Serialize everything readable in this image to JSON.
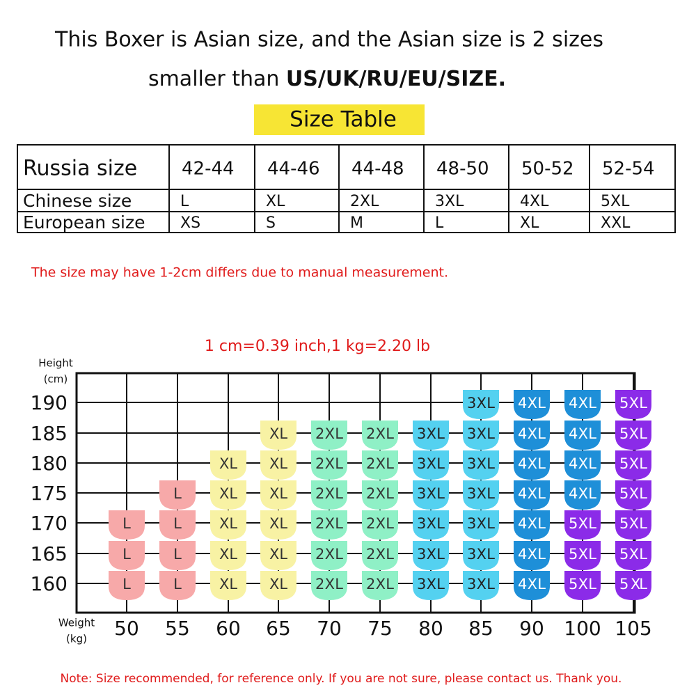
{
  "header": {
    "line1": "This Boxer is Asian size, and the Asian size is 2 sizes",
    "line2_start": "smaller than ",
    "line2_bold": "US/UK/RU/EU/SIZE."
  },
  "table": {
    "title": "Size Table",
    "rows": [
      [
        "Russia size",
        "42-44",
        "44-46",
        "44-48",
        "48-50",
        "50-52",
        "52-54"
      ],
      [
        "Chinese size",
        "L",
        "XL",
        "2XL",
        "3XL",
        "4XL",
        "5XL"
      ],
      [
        "European size",
        "XS",
        "S",
        "M",
        "L",
        "XL",
        "XXL"
      ]
    ]
  },
  "measurement_note": "The size may have 1-2cm differs due to manual measurement.",
  "conversion": "1 cm=0.39 inch,1 kg=2.20 lb",
  "grid": {
    "y_label": [
      "Height",
      "(cm)"
    ],
    "x_label": [
      "Weight",
      "(kg)"
    ],
    "weights": [
      "50",
      "55",
      "60",
      "65",
      "70",
      "75",
      "80",
      "85",
      "90",
      "100",
      "105"
    ],
    "size_colors": {
      "L": [
        "#f7a9a9",
        "#333333"
      ],
      "XL": [
        "#f8f2a4",
        "#333333"
      ],
      "2XL": [
        "#8ff0c6",
        "#333333"
      ],
      "3XL": [
        "#54d1f0",
        "#222222"
      ],
      "4XL": [
        "#1e8fd8",
        "#ffffff"
      ],
      "5XL": [
        "#8b2be8",
        "#ffffff"
      ],
      "5 XL": [
        "#8b2be8",
        "#ffffff"
      ]
    },
    "rows": [
      {
        "height": "190",
        "cells": [
          null,
          null,
          null,
          null,
          null,
          null,
          null,
          "3XL",
          "4XL",
          "4XL",
          "5XL"
        ]
      },
      {
        "height": "185",
        "cells": [
          null,
          null,
          null,
          "XL",
          "2XL",
          "2XL",
          "3XL",
          "3XL",
          "4XL",
          "4XL",
          "5XL"
        ]
      },
      {
        "height": "180",
        "cells": [
          null,
          null,
          "XL",
          "XL",
          "2XL",
          "2XL",
          "3XL",
          "3XL",
          "4XL",
          "4XL",
          "5XL"
        ]
      },
      {
        "height": "175",
        "cells": [
          null,
          "L",
          "XL",
          "XL",
          "2XL",
          "2XL",
          "3XL",
          "3XL",
          "4XL",
          "4XL",
          "5XL"
        ]
      },
      {
        "height": "170",
        "cells": [
          "L",
          "L",
          "XL",
          "XL",
          "2XL",
          "2XL",
          "3XL",
          "3XL",
          "4XL",
          "5XL",
          "5XL"
        ]
      },
      {
        "height": "165",
        "cells": [
          "L",
          "L",
          "XL",
          "XL",
          "2XL",
          "2XL",
          "3XL",
          "3XL",
          "4XL",
          "5XL",
          "5XL"
        ]
      },
      {
        "height": "160",
        "cells": [
          "L",
          "L",
          "XL",
          "XL",
          "2XL",
          "2XL",
          "3XL",
          "3XL",
          "4XL",
          "5XL",
          "5 XL"
        ]
      }
    ]
  },
  "footer_note": "Note: Size recommended, for reference only. If you are not sure, please contact us. Thank you."
}
